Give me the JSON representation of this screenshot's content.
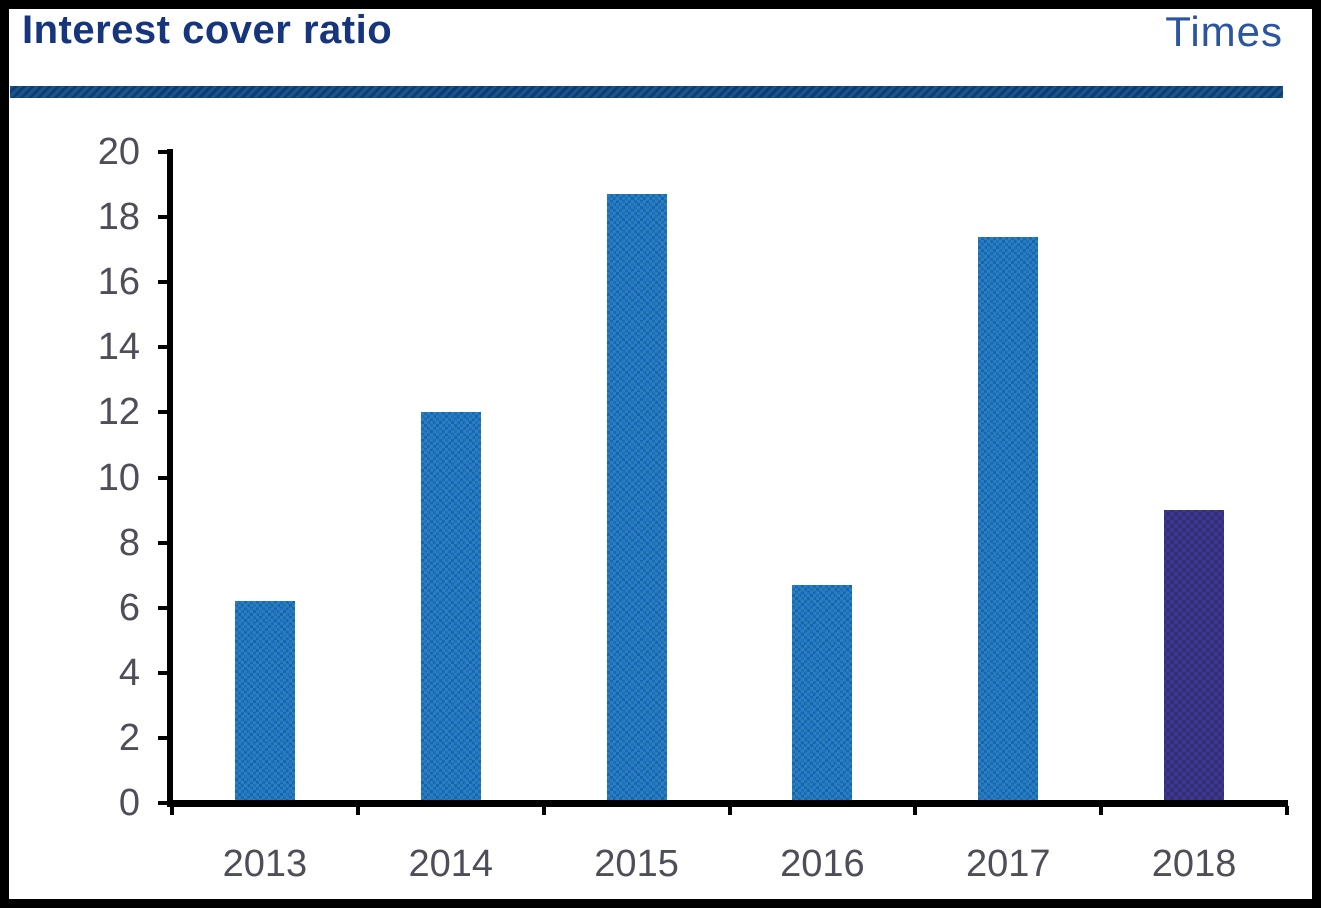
{
  "header": {
    "title": "Interest cover ratio",
    "unit": "Times"
  },
  "chart_data": {
    "type": "bar",
    "title": "Interest cover ratio",
    "unit_label": "Times",
    "categories": [
      "2013",
      "2014",
      "2015",
      "2016",
      "2017",
      "2018"
    ],
    "values": [
      6.2,
      12.0,
      18.7,
      6.7,
      17.4,
      9.0
    ],
    "xlabel": "",
    "ylabel": "",
    "ylim": [
      0,
      20
    ],
    "yticks": [
      0,
      2,
      4,
      6,
      8,
      10,
      12,
      14,
      16,
      18,
      20
    ],
    "grid": "off",
    "legend": "none",
    "series_color": "#1a6ab5",
    "highlight": {
      "category": "2018",
      "color": "#353070"
    }
  },
  "colors": {
    "title_text": "#16357d",
    "unit_text": "#2b55a0",
    "title_rule": "#0e3a7e",
    "axis": "#000000",
    "tick_label_text": "#4e4e59",
    "frame_border": "#000000",
    "background": "#ffffff"
  }
}
